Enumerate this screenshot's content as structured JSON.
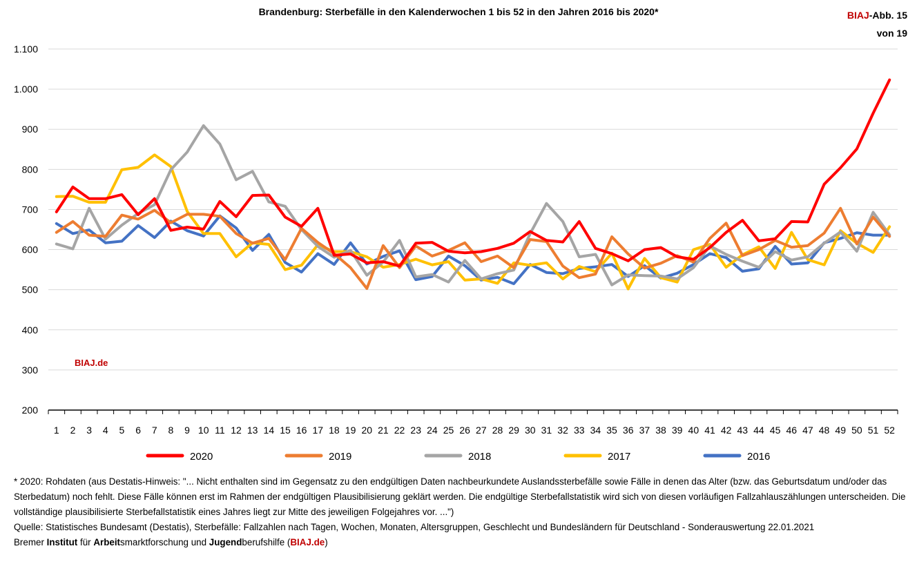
{
  "chart_data": {
    "type": "line",
    "title": "Brandenburg: Sterbefälle in den Kalenderwochen 1 bis 52 in den Jahren 2016 bis 2020*",
    "xlabel": "",
    "ylabel": "",
    "ylim": [
      200,
      1100
    ],
    "yticks": [
      200,
      300,
      400,
      500,
      600,
      700,
      800,
      900,
      1000,
      1100
    ],
    "ytick_labels": [
      "200",
      "300",
      "400",
      "500",
      "600",
      "700",
      "800",
      "900",
      "1.000",
      "1.100"
    ],
    "grid": "horizontal",
    "legend": "bottom",
    "categories": [
      "1",
      "2",
      "3",
      "4",
      "5",
      "6",
      "7",
      "8",
      "9",
      "10",
      "11",
      "12",
      "13",
      "14",
      "15",
      "16",
      "17",
      "18",
      "19",
      "20",
      "21",
      "22",
      "23",
      "24",
      "25",
      "26",
      "27",
      "28",
      "29",
      "30",
      "31",
      "32",
      "33",
      "34",
      "35",
      "36",
      "37",
      "38",
      "39",
      "40",
      "41",
      "42",
      "43",
      "44",
      "45",
      "46",
      "47",
      "48",
      "49",
      "50",
      "51",
      "52"
    ],
    "series": [
      {
        "name": "2020",
        "color": "#ff0000",
        "values": [
          694,
          756,
          727,
          727,
          737,
          687,
          727,
          648,
          656,
          651,
          720,
          682,
          735,
          736,
          681,
          658,
          703,
          586,
          589,
          567,
          570,
          559,
          616,
          618,
          596,
          592,
          595,
          603,
          616,
          645,
          623,
          619,
          670,
          603,
          590,
          572,
          600,
          605,
          582,
          576,
          605,
          643,
          673,
          622,
          627,
          670,
          669,
          763,
          804,
          851,
          940,
          1023
        ]
      },
      {
        "name": "2019",
        "color": "#ed7d31",
        "values": [
          643,
          670,
          636,
          633,
          686,
          676,
          698,
          667,
          688,
          688,
          683,
          640,
          616,
          628,
          575,
          653,
          618,
          590,
          555,
          503,
          610,
          555,
          609,
          584,
          598,
          617,
          570,
          584,
          555,
          625,
          620,
          559,
          530,
          539,
          632,
          589,
          554,
          566,
          585,
          569,
          628,
          666,
          585,
          600,
          623,
          606,
          610,
          641,
          703,
          614,
          681,
          633
        ]
      },
      {
        "name": "2018",
        "color": "#a5a5a5",
        "values": [
          614,
          602,
          703,
          626,
          661,
          690,
          712,
          799,
          843,
          909,
          863,
          774,
          795,
          719,
          708,
          650,
          608,
          581,
          598,
          536,
          569,
          623,
          532,
          538,
          519,
          573,
          527,
          540,
          549,
          640,
          715,
          670,
          582,
          588,
          512,
          537,
          535,
          534,
          527,
          555,
          609,
          588,
          571,
          556,
          595,
          574,
          582,
          616,
          644,
          596,
          693,
          637
        ]
      },
      {
        "name": "2017",
        "color": "#ffc000",
        "values": [
          732,
          733,
          718,
          718,
          799,
          805,
          836,
          807,
          695,
          640,
          640,
          582,
          617,
          613,
          550,
          561,
          612,
          595,
          595,
          582,
          556,
          563,
          576,
          562,
          570,
          524,
          527,
          516,
          567,
          561,
          567,
          527,
          558,
          545,
          591,
          502,
          578,
          530,
          519,
          600,
          613,
          556,
          587,
          607,
          553,
          643,
          575,
          562,
          647,
          616,
          593,
          657
        ]
      },
      {
        "name": "2016",
        "color": "#4472c4",
        "values": [
          665,
          640,
          649,
          617,
          621,
          660,
          630,
          671,
          647,
          634,
          684,
          654,
          598,
          638,
          568,
          544,
          590,
          563,
          617,
          564,
          583,
          597,
          525,
          533,
          584,
          560,
          524,
          531,
          515,
          563,
          543,
          540,
          553,
          557,
          563,
          533,
          560,
          529,
          541,
          563,
          590,
          580,
          546,
          552,
          608,
          564,
          567,
          617,
          628,
          642,
          636,
          636
        ]
      }
    ]
  },
  "header": {
    "badge_red": "BIAJ",
    "badge_rest": "-Abb. 15",
    "badge_line2": "von 19"
  },
  "watermark": "BIAJ.de",
  "footnote": {
    "line1": "* 2020: Rohdaten (aus Destatis-Hinweis: \"... Nicht enthalten sind im Gegensatz zu den endgültigen Daten nachbeurkundete Auslandssterbefälle sowie Fälle in denen das Alter (bzw. das Geburtsdatum und/oder das Sterbedatum) noch fehlt. Diese Fälle können erst im Rahmen der endgültigen Plausibilisierung geklärt werden. Die endgültige Sterbefallstatistik wird sich von diesen vorläufigen Fallzahlauszählungen unterscheiden. Die vollständige plausibilisierte Sterbefallstatistik eines Jahres liegt zur Mitte des jeweiligen Folgejahres vor. ...\")",
    "line2": "Quelle: Statistisches Bundesamt (Destatis), Sterbefälle: Fallzahlen nach Tagen, Wochen, Monaten, Altersgruppen, Geschlecht und Bundesländern für Deutschland - Sonderauswertung 22.01.2021",
    "credit_1": "Bremer ",
    "credit_2": "Institut",
    "credit_3": " für ",
    "credit_4": "Arbeit",
    "credit_5": "smarktforschung und ",
    "credit_6": "Jugend",
    "credit_7": "berufshilfe (",
    "credit_8": "BIAJ.de",
    "credit_9": ")"
  }
}
